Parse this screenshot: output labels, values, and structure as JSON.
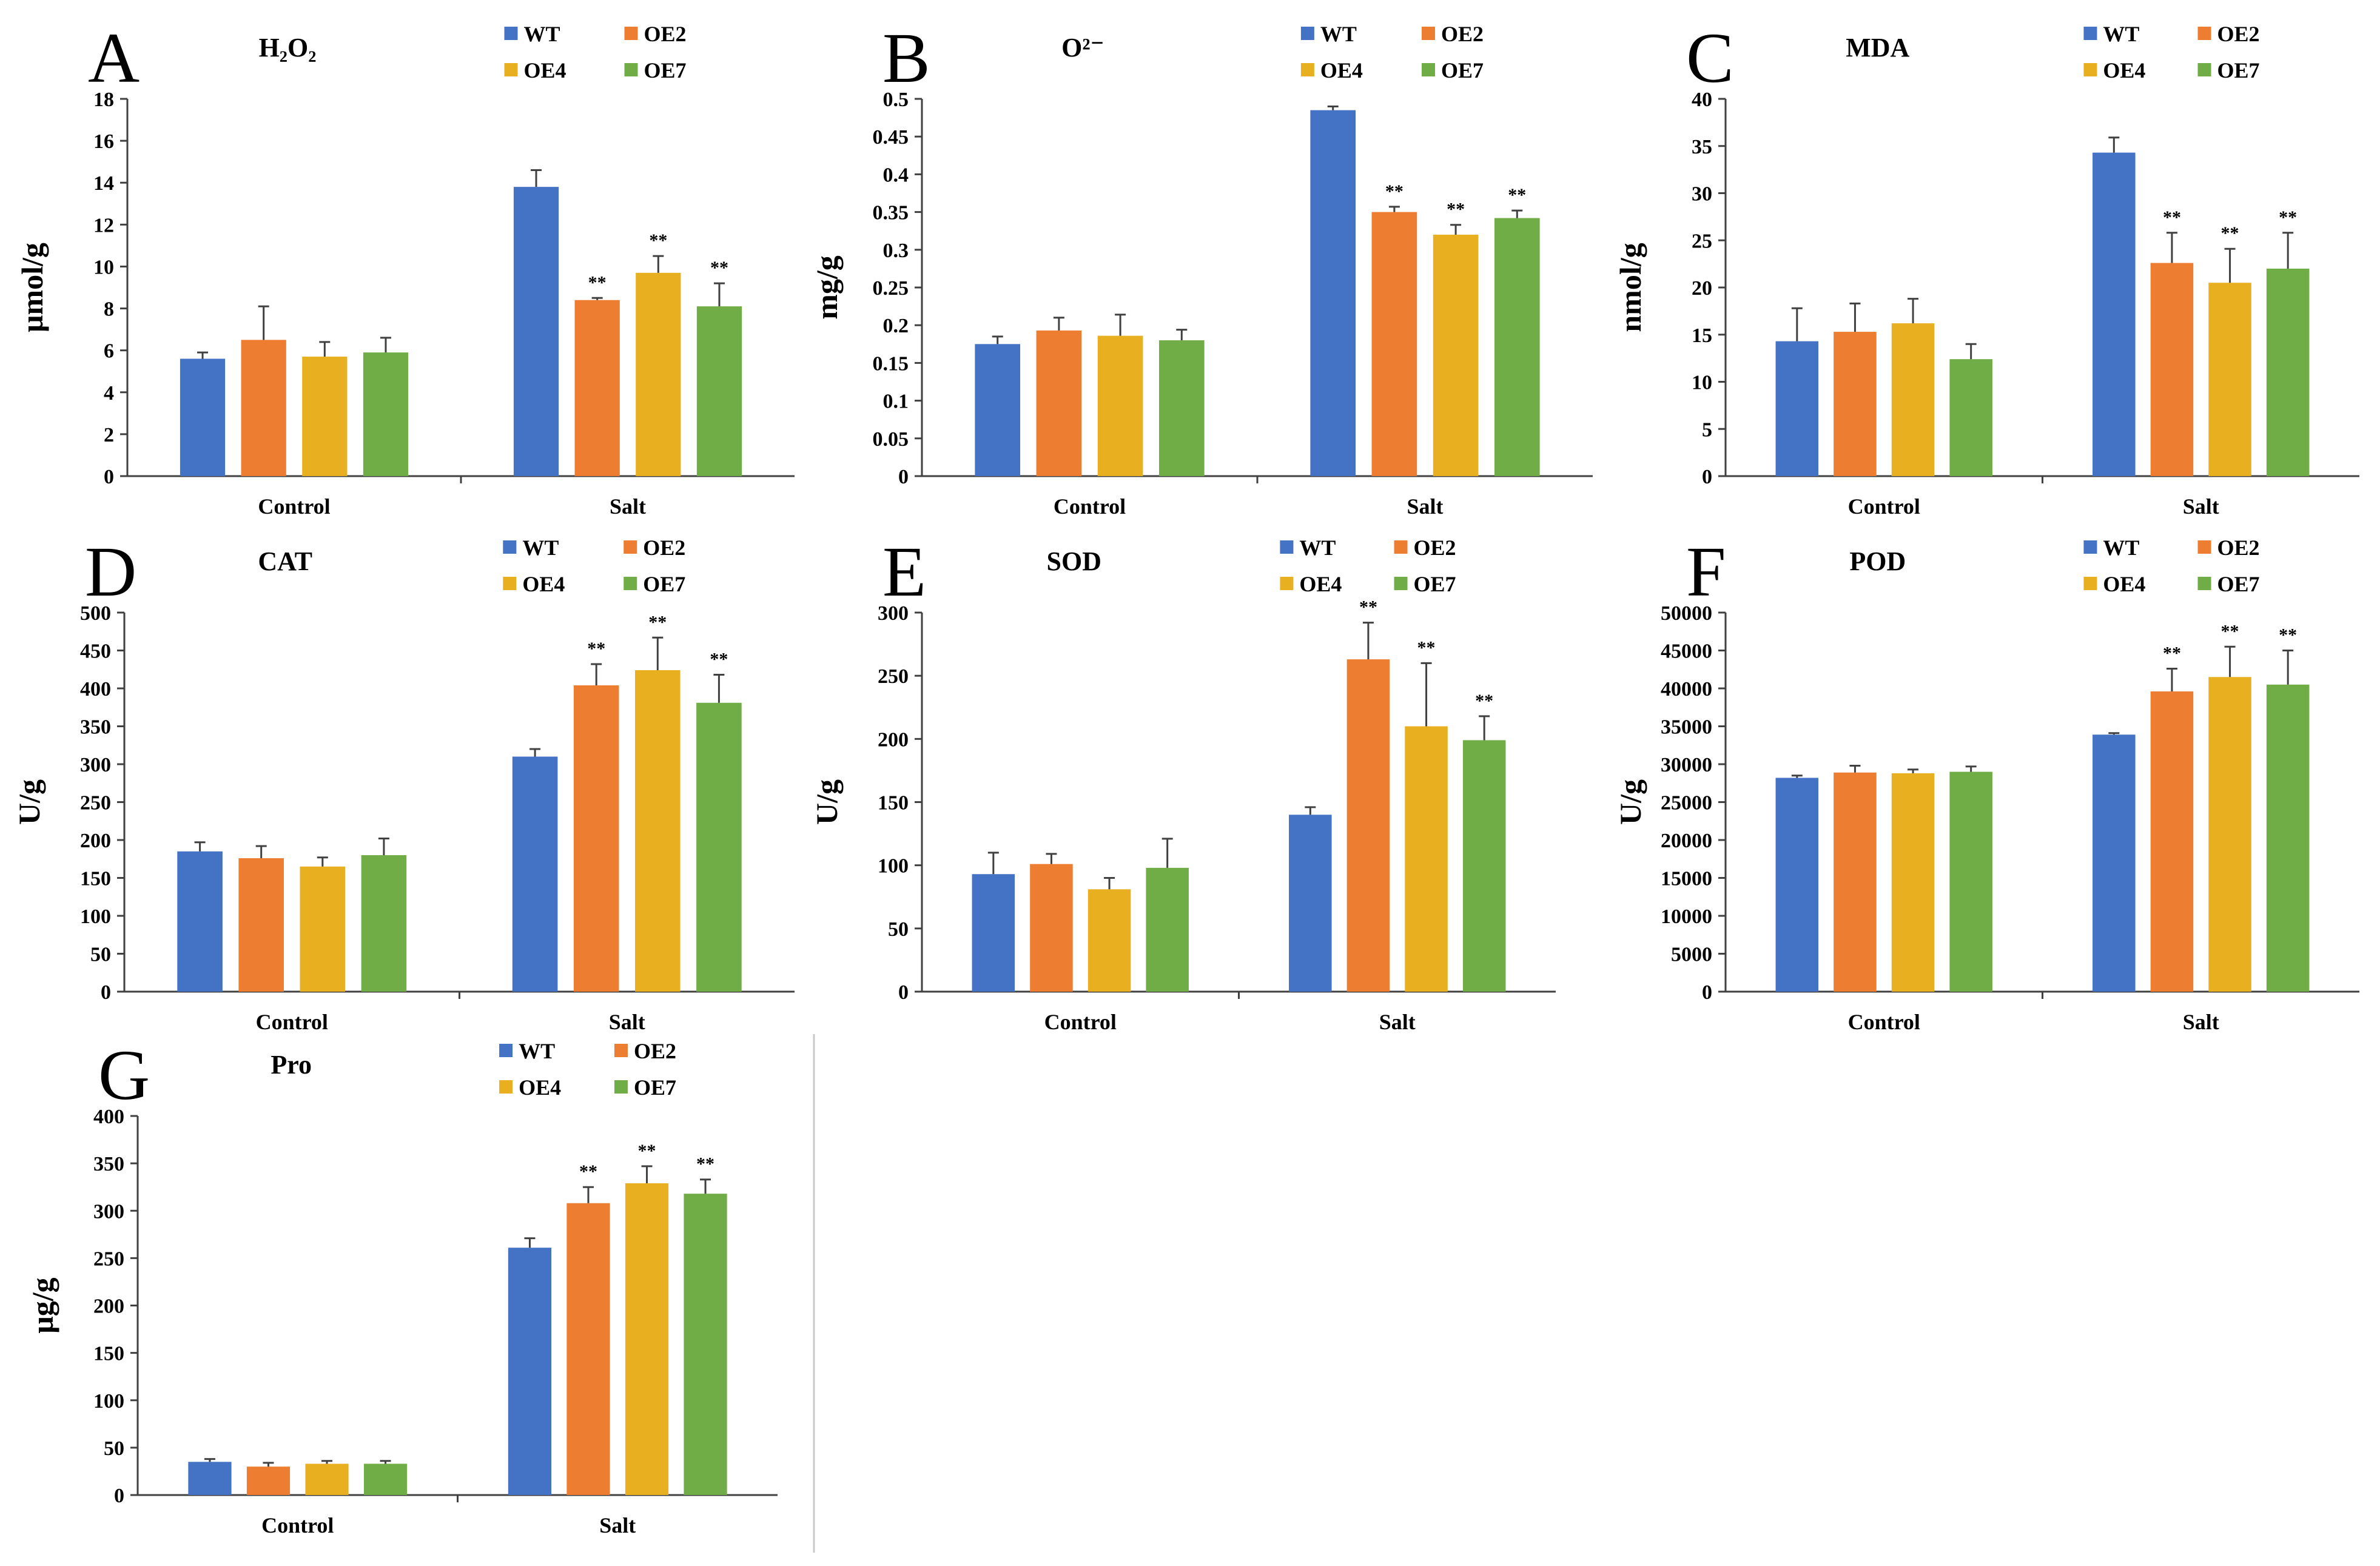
{
  "colors": {
    "WT": "#4472C4",
    "OE2": "#ED7D31",
    "OE4": "#E8B020",
    "OE7": "#70AD47",
    "axis": "#404040",
    "errorbar": "#404040"
  },
  "chart_data": [
    {
      "type": "bar",
      "panel": "A",
      "title": "H₂O₂",
      "ylabel": "μmol/g",
      "xlabel": "",
      "ylim": [
        0,
        18
      ],
      "yticks": [
        0,
        2,
        4,
        6,
        8,
        10,
        12,
        14,
        16,
        18
      ],
      "categories": [
        "Control",
        "Salt"
      ],
      "legend": [
        "WT",
        "OE2",
        "OE4",
        "OE7"
      ],
      "series": [
        {
          "name": "WT",
          "values": [
            5.6,
            13.8
          ],
          "errors": [
            0.3,
            0.8
          ]
        },
        {
          "name": "OE2",
          "values": [
            6.5,
            8.4
          ],
          "errors": [
            1.6,
            0.1
          ]
        },
        {
          "name": "OE4",
          "values": [
            5.7,
            9.7
          ],
          "errors": [
            0.7,
            0.8
          ]
        },
        {
          "name": "OE7",
          "values": [
            5.9,
            8.1
          ],
          "errors": [
            0.7,
            1.1
          ]
        }
      ],
      "significance": [
        [
          "",
          ""
        ],
        [
          "",
          "**"
        ],
        [
          "",
          "**"
        ],
        [
          "",
          "**"
        ]
      ]
    },
    {
      "type": "bar",
      "panel": "B",
      "title": "O²⁻",
      "ylabel": "mg/g",
      "xlabel": "",
      "ylim": [
        0,
        0.5
      ],
      "yticks": [
        0,
        0.05,
        0.1,
        0.15,
        0.2,
        0.25,
        0.3,
        0.35,
        0.4,
        0.45,
        0.5
      ],
      "categories": [
        "Control",
        "Salt"
      ],
      "legend": [
        "WT",
        "OE2",
        "OE4",
        "OE7"
      ],
      "series": [
        {
          "name": "WT",
          "values": [
            0.175,
            0.485
          ],
          "errors": [
            0.01,
            0.005
          ]
        },
        {
          "name": "OE2",
          "values": [
            0.193,
            0.35
          ],
          "errors": [
            0.017,
            0.007
          ]
        },
        {
          "name": "OE4",
          "values": [
            0.186,
            0.32
          ],
          "errors": [
            0.028,
            0.013
          ]
        },
        {
          "name": "OE7",
          "values": [
            0.18,
            0.342
          ],
          "errors": [
            0.014,
            0.01
          ]
        }
      ],
      "significance": [
        [
          "",
          ""
        ],
        [
          "",
          "**"
        ],
        [
          "",
          "**"
        ],
        [
          "",
          "**"
        ]
      ]
    },
    {
      "type": "bar",
      "panel": "C",
      "title": "MDA",
      "ylabel": "nmol/g",
      "xlabel": "",
      "ylim": [
        0,
        40
      ],
      "yticks": [
        0,
        5,
        10,
        15,
        20,
        25,
        30,
        35,
        40
      ],
      "categories": [
        "Control",
        "Salt"
      ],
      "legend": [
        "WT",
        "OE2",
        "OE4",
        "OE7"
      ],
      "series": [
        {
          "name": "WT",
          "values": [
            14.3,
            34.3
          ],
          "errors": [
            3.5,
            1.6
          ]
        },
        {
          "name": "OE2",
          "values": [
            15.3,
            22.6
          ],
          "errors": [
            3.0,
            3.2
          ]
        },
        {
          "name": "OE4",
          "values": [
            16.2,
            20.5
          ],
          "errors": [
            2.6,
            3.6
          ]
        },
        {
          "name": "OE7",
          "values": [
            12.4,
            22.0
          ],
          "errors": [
            1.6,
            3.8
          ]
        }
      ],
      "significance": [
        [
          "",
          ""
        ],
        [
          "",
          "**"
        ],
        [
          "",
          "**"
        ],
        [
          "",
          "**"
        ]
      ]
    },
    {
      "type": "bar",
      "panel": "D",
      "title": "CAT",
      "ylabel": "U/g",
      "xlabel": "",
      "ylim": [
        0,
        500
      ],
      "yticks": [
        0,
        50,
        100,
        150,
        200,
        250,
        300,
        350,
        400,
        450,
        500
      ],
      "categories": [
        "Control",
        "Salt"
      ],
      "legend": [
        "WT",
        "OE2",
        "OE4",
        "OE7"
      ],
      "series": [
        {
          "name": "WT",
          "values": [
            185,
            310
          ],
          "errors": [
            12,
            10
          ]
        },
        {
          "name": "OE2",
          "values": [
            176,
            404
          ],
          "errors": [
            16,
            28
          ]
        },
        {
          "name": "OE4",
          "values": [
            165,
            424
          ],
          "errors": [
            12,
            43
          ]
        },
        {
          "name": "OE7",
          "values": [
            180,
            381
          ],
          "errors": [
            22,
            37
          ]
        }
      ],
      "significance": [
        [
          "",
          ""
        ],
        [
          "",
          "**"
        ],
        [
          "",
          "**"
        ],
        [
          "",
          "**"
        ]
      ]
    },
    {
      "type": "bar",
      "panel": "E",
      "title": "SOD",
      "ylabel": "U/g",
      "xlabel": "",
      "ylim": [
        0,
        300
      ],
      "yticks": [
        0,
        50,
        100,
        150,
        200,
        250,
        300
      ],
      "categories": [
        "Control",
        "Salt"
      ],
      "legend": [
        "WT",
        "OE2",
        "OE4",
        "OE7"
      ],
      "series": [
        {
          "name": "WT",
          "values": [
            93,
            140
          ],
          "errors": [
            17,
            6
          ]
        },
        {
          "name": "OE2",
          "values": [
            101,
            263
          ],
          "errors": [
            8,
            29
          ]
        },
        {
          "name": "OE4",
          "values": [
            81,
            210
          ],
          "errors": [
            9,
            50
          ]
        },
        {
          "name": "OE7",
          "values": [
            98,
            199
          ],
          "errors": [
            23,
            19
          ]
        }
      ],
      "significance": [
        [
          "",
          ""
        ],
        [
          "",
          "**"
        ],
        [
          "",
          "**"
        ],
        [
          "",
          "**"
        ]
      ]
    },
    {
      "type": "bar",
      "panel": "F",
      "title": "POD",
      "ylabel": "U/g",
      "xlabel": "",
      "ylim": [
        0,
        50000
      ],
      "yticks": [
        0,
        5000,
        10000,
        15000,
        20000,
        25000,
        30000,
        35000,
        40000,
        45000,
        50000
      ],
      "categories": [
        "Control",
        "Salt"
      ],
      "legend": [
        "WT",
        "OE2",
        "OE4",
        "OE7"
      ],
      "series": [
        {
          "name": "WT",
          "values": [
            28200,
            33900
          ],
          "errors": [
            300,
            200
          ]
        },
        {
          "name": "OE2",
          "values": [
            28900,
            39600
          ],
          "errors": [
            900,
            3000
          ]
        },
        {
          "name": "OE4",
          "values": [
            28800,
            41500
          ],
          "errors": [
            500,
            4000
          ]
        },
        {
          "name": "OE7",
          "values": [
            29000,
            40500
          ],
          "errors": [
            700,
            4500
          ]
        }
      ],
      "significance": [
        [
          "",
          ""
        ],
        [
          "",
          "**"
        ],
        [
          "",
          "**"
        ],
        [
          "",
          "**"
        ]
      ]
    },
    {
      "type": "bar",
      "panel": "G",
      "title": "Pro",
      "ylabel": "μg/g",
      "xlabel": "",
      "ylim": [
        0,
        400
      ],
      "yticks": [
        0,
        50,
        100,
        150,
        200,
        250,
        300,
        350,
        400
      ],
      "categories": [
        "Control",
        "Salt"
      ],
      "legend": [
        "WT",
        "OE2",
        "OE4",
        "OE7"
      ],
      "series": [
        {
          "name": "WT",
          "values": [
            35,
            261
          ],
          "errors": [
            3,
            10
          ]
        },
        {
          "name": "OE2",
          "values": [
            30,
            308
          ],
          "errors": [
            4,
            17
          ]
        },
        {
          "name": "OE4",
          "values": [
            33,
            329
          ],
          "errors": [
            3,
            18
          ]
        },
        {
          "name": "OE7",
          "values": [
            33,
            318
          ],
          "errors": [
            3,
            15
          ]
        }
      ],
      "significance": [
        [
          "",
          ""
        ],
        [
          "",
          "**"
        ],
        [
          "",
          "**"
        ],
        [
          "",
          "**"
        ]
      ]
    }
  ]
}
